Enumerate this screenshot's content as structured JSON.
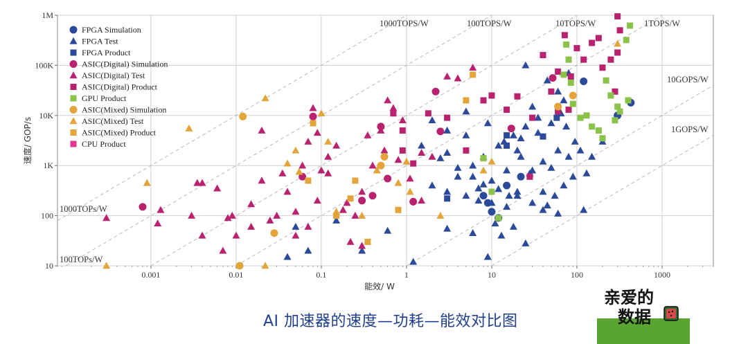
{
  "caption": "AI 加速器的速度—功耗—能效对比图",
  "logo": {
    "line1": "亲爱的",
    "line2": "数据"
  },
  "chart_data": {
    "type": "scatter",
    "xlabel": "能效/ W",
    "ylabel": "速度/ GOP/s",
    "x_scale": "log",
    "y_scale": "log",
    "xlim": [
      8e-05,
      4000
    ],
    "ylim": [
      10,
      1000000
    ],
    "x_ticks": [
      {
        "value": 0.001,
        "label": "0.001"
      },
      {
        "value": 0.01,
        "label": "0.01"
      },
      {
        "value": 0.1,
        "label": "0.1"
      },
      {
        "value": 1,
        "label": "1"
      },
      {
        "value": 10,
        "label": "10"
      },
      {
        "value": 100,
        "label": "100"
      },
      {
        "value": 1000,
        "label": "1000"
      }
    ],
    "y_ticks": [
      {
        "value": 10,
        "label": "10"
      },
      {
        "value": 100,
        "label": "100"
      },
      {
        "value": 1000,
        "label": "1K"
      },
      {
        "value": 10000,
        "label": "10K"
      },
      {
        "value": 100000,
        "label": "100K"
      },
      {
        "value": 1000000,
        "label": "1M"
      }
    ],
    "grid": true,
    "legend_position": "top-left",
    "efficiency_lines": [
      {
        "label": "100TOPs/W",
        "slope_x": 0.0001,
        "label_at": "left-bottom"
      },
      {
        "label": "1000TOPs/W",
        "slope_x": 1e-06,
        "label_at": "left"
      },
      {
        "label": "1000TOPS/W",
        "slope_x": 1e-06,
        "label_at": "top"
      },
      {
        "label": "100TOPS/W",
        "slope_x": 1e-05,
        "label_at": "top"
      },
      {
        "label": "10TOPS/W",
        "slope_x": 0.0001,
        "label_at": "top"
      },
      {
        "label": "1TOPS/W",
        "slope_x": 0.001,
        "label_at": "top"
      },
      {
        "label": "10GOPS/W",
        "slope_x": 0.1,
        "label_at": "right"
      },
      {
        "label": "1GOPS/W",
        "slope_x": 1,
        "label_at": "right"
      }
    ],
    "series": [
      {
        "name": "FPGA Simulation",
        "marker": "circle",
        "color": "#2b4a9a",
        "points": [
          [
            120,
            48000
          ],
          [
            430,
            18000
          ],
          [
            300,
            10000
          ],
          [
            22,
            600
          ],
          [
            8,
            250
          ],
          [
            10,
            120
          ],
          [
            12,
            90
          ],
          [
            9,
            180
          ],
          [
            15,
            400
          ]
        ]
      },
      {
        "name": "FPGA Test",
        "marker": "triangle",
        "color": "#2b4a9a",
        "points": [
          [
            2,
            400
          ],
          [
            3,
            300
          ],
          [
            5,
            250
          ],
          [
            7,
            200
          ],
          [
            10,
            180
          ],
          [
            15,
            150
          ],
          [
            20,
            300
          ],
          [
            30,
            800
          ],
          [
            40,
            1200
          ],
          [
            50,
            900
          ],
          [
            60,
            2000
          ],
          [
            80,
            1500
          ],
          [
            6,
            1000
          ],
          [
            8,
            1500
          ],
          [
            12,
            2500
          ],
          [
            18,
            4000
          ],
          [
            25,
            6000
          ],
          [
            35,
            9000
          ],
          [
            45,
            50000
          ],
          [
            60,
            30000
          ],
          [
            70,
            20000
          ],
          [
            80,
            70000
          ],
          [
            25,
            100000
          ],
          [
            30,
            15000
          ],
          [
            20,
            2000
          ],
          [
            15,
            800
          ],
          [
            10,
            500
          ],
          [
            7,
            350
          ],
          [
            4,
            600
          ],
          [
            3,
            1800
          ],
          [
            5,
            4000
          ],
          [
            9,
            7000
          ],
          [
            14,
            3000
          ],
          [
            22,
            1500
          ],
          [
            28,
            700
          ],
          [
            40,
            300
          ],
          [
            55,
            250
          ],
          [
            70,
            400
          ],
          [
            90,
            600
          ],
          [
            110,
            2000
          ],
          [
            120,
            130
          ],
          [
            150,
            1500
          ],
          [
            200,
            3000
          ],
          [
            18,
            60
          ],
          [
            13,
            40
          ],
          [
            9,
            15
          ],
          [
            1.2,
            12
          ],
          [
            3,
            55
          ],
          [
            6,
            45
          ],
          [
            11,
            70
          ],
          [
            25,
            28
          ],
          [
            40,
            130
          ],
          [
            0.05,
            60
          ],
          [
            0.07,
            20
          ],
          [
            0.04,
            15
          ],
          [
            0.3,
            20
          ],
          [
            0.15,
            80
          ],
          [
            0.6,
            50
          ],
          [
            5,
            12000
          ],
          [
            3,
            5000
          ],
          [
            2,
            8000
          ],
          [
            1.5,
            2500
          ],
          [
            2.5,
            1400
          ],
          [
            4,
            900
          ],
          [
            6,
            600
          ],
          [
            8,
            420
          ],
          [
            12,
            340
          ],
          [
            20,
            250
          ],
          [
            30,
            180
          ],
          [
            45,
            160
          ],
          [
            60,
            110
          ],
          [
            16,
            250
          ],
          [
            22,
            3500
          ],
          [
            35,
            4500
          ],
          [
            50,
            7000
          ],
          [
            65,
            11000
          ],
          [
            75,
            6000
          ],
          [
            95,
            3000
          ],
          [
            130,
            700
          ]
        ]
      },
      {
        "name": "FPGA Product",
        "marker": "square",
        "color": "#2b4a9a",
        "points": [
          [
            3,
            220
          ],
          [
            15,
            4000
          ],
          [
            15,
            2500
          ],
          [
            40,
            3800
          ],
          [
            58,
            9000
          ]
        ]
      },
      {
        "name": "ASIC(Digital) Simulation",
        "marker": "circle",
        "color": "#b8226e",
        "points": [
          [
            0.0008,
            150
          ],
          [
            0.08,
            9500
          ],
          [
            0.06,
            600
          ],
          [
            0.3,
            200
          ],
          [
            0.4,
            250
          ],
          [
            0.6,
            550
          ],
          [
            1.2,
            190
          ],
          [
            0.5,
            6000
          ],
          [
            2.5,
            4800
          ],
          [
            2.2,
            30000
          ],
          [
            17,
            5500
          ],
          [
            52,
            56000
          ]
        ]
      },
      {
        "name": "ASIC(Digital) Test",
        "marker": "triangle",
        "color": "#b8226e",
        "points": [
          [
            0.0003,
            90
          ],
          [
            0.0012,
            70
          ],
          [
            0.0013,
            130
          ],
          [
            0.0035,
            450
          ],
          [
            0.004,
            450
          ],
          [
            0.006,
            350
          ],
          [
            0.007,
            20
          ],
          [
            0.008,
            90
          ],
          [
            0.009,
            100
          ],
          [
            0.01,
            40
          ],
          [
            0.015,
            60
          ],
          [
            0.02,
            500
          ],
          [
            0.025,
            80
          ],
          [
            0.03,
            100
          ],
          [
            0.035,
            700
          ],
          [
            0.04,
            300
          ],
          [
            0.05,
            120
          ],
          [
            0.06,
            1000
          ],
          [
            0.07,
            3000
          ],
          [
            0.08,
            14000
          ],
          [
            0.09,
            200
          ],
          [
            0.1,
            800
          ],
          [
            0.12,
            1500
          ],
          [
            0.15,
            2500
          ],
          [
            0.2,
            180
          ],
          [
            0.25,
            100
          ],
          [
            0.3,
            300
          ],
          [
            0.35,
            4000
          ],
          [
            0.4,
            1000
          ],
          [
            0.5,
            5000
          ],
          [
            0.6,
            20000
          ],
          [
            0.7,
            14000
          ],
          [
            0.9,
            8000
          ],
          [
            1.1,
            550
          ],
          [
            1.5,
            200
          ],
          [
            2,
            1500
          ],
          [
            3,
            60000
          ],
          [
            4,
            55000
          ],
          [
            6,
            90000
          ],
          [
            0.004,
            40
          ],
          [
            0.003,
            100
          ],
          [
            0.015,
            170
          ],
          [
            0.02,
            5000
          ],
          [
            0.05,
            40
          ],
          [
            0.07,
            60
          ],
          [
            0.09,
            4500
          ],
          [
            0.12,
            700
          ],
          [
            0.18,
            130
          ],
          [
            0.22,
            30
          ],
          [
            0.3,
            25
          ],
          [
            0.45,
            800
          ],
          [
            0.55,
            2000
          ],
          [
            0.8,
            1300
          ],
          [
            1.5,
            1800
          ]
        ]
      },
      {
        "name": "ASIC(Digital) Product",
        "marker": "square",
        "color": "#b8226e",
        "points": [
          [
            0.7,
            11000
          ],
          [
            0.9,
            5000
          ],
          [
            0.9,
            2000
          ],
          [
            1.2,
            1100
          ],
          [
            1.8,
            11000
          ],
          [
            3,
            9000
          ],
          [
            5,
            2000
          ],
          [
            8,
            20000
          ],
          [
            10,
            25000
          ],
          [
            15,
            13000
          ],
          [
            20,
            24000
          ],
          [
            28,
            600
          ],
          [
            30,
            9000
          ],
          [
            40,
            160000
          ],
          [
            50,
            30000
          ],
          [
            60,
            12000
          ],
          [
            72,
            400000
          ],
          [
            85,
            60000
          ],
          [
            100,
            220000
          ],
          [
            120,
            130000
          ],
          [
            150,
            280000
          ],
          [
            180,
            350000
          ],
          [
            200,
            90000
          ],
          [
            250,
            130000
          ],
          [
            300,
            180000
          ],
          [
            320,
            500000
          ],
          [
            300,
            950000
          ],
          [
            280,
            30000
          ],
          [
            80,
            13000
          ],
          [
            60,
            75000
          ]
        ]
      },
      {
        "name": "GPU Product",
        "marker": "square",
        "color": "#8bc34a",
        "points": [
          [
            75,
            260000
          ],
          [
            80,
            130000
          ],
          [
            70,
            65000
          ],
          [
            85,
            45000
          ],
          [
            90,
            17000
          ],
          [
            110,
            9000
          ],
          [
            130,
            10000
          ],
          [
            150,
            6000
          ],
          [
            200,
            3500
          ],
          [
            220,
            50000
          ],
          [
            250,
            25000
          ],
          [
            280,
            8000
          ],
          [
            320,
            12000
          ],
          [
            380,
            320000
          ],
          [
            420,
            620000
          ],
          [
            400,
            20000
          ],
          [
            300,
            15000
          ],
          [
            180,
            5000
          ],
          [
            10,
            300
          ],
          [
            12,
            90
          ],
          [
            8,
            1400
          ]
        ]
      },
      {
        "name": "ASIC(Mixed) Simulation",
        "marker": "circle",
        "color": "#e3a43a",
        "points": [
          [
            0.012,
            9500
          ],
          [
            0.028,
            45
          ],
          [
            0.011,
            10
          ],
          [
            0.5,
            1000
          ],
          [
            0.55,
            1500
          ],
          [
            60,
            15000
          ],
          [
            90,
            25000
          ]
        ]
      },
      {
        "name": "ASIC(Mixed) Test",
        "marker": "triangle",
        "color": "#e3a43a",
        "points": [
          [
            0.0009,
            450
          ],
          [
            0.0003,
            10
          ],
          [
            0.0028,
            5500
          ],
          [
            0.022,
            22000
          ],
          [
            0.022,
            10
          ],
          [
            0.04,
            1100
          ],
          [
            0.05,
            2000
          ],
          [
            0.055,
            750
          ],
          [
            0.1,
            11000
          ],
          [
            0.12,
            3000
          ],
          [
            0.15,
            120
          ],
          [
            0.3,
            100
          ],
          [
            0.45,
            800
          ],
          [
            0.8,
            450
          ],
          [
            1,
            1200
          ],
          [
            1.1,
            300
          ],
          [
            2.5,
            100
          ],
          [
            8,
            800
          ],
          [
            10,
            1200
          ],
          [
            300,
            270000
          ]
        ]
      },
      {
        "name": "ASIC(Mixed) Product",
        "marker": "square",
        "color": "#e3a43a",
        "points": [
          [
            0.08,
            7000
          ],
          [
            0.07,
            500
          ],
          [
            0.15,
            100
          ],
          [
            0.22,
            220
          ],
          [
            0.25,
            500
          ],
          [
            0.35,
            30
          ],
          [
            0.8,
            130
          ],
          [
            5,
            20000
          ],
          [
            6,
            65000
          ]
        ]
      },
      {
        "name": "CPU Product",
        "marker": "square",
        "color": "#e5338e",
        "points": []
      }
    ]
  }
}
